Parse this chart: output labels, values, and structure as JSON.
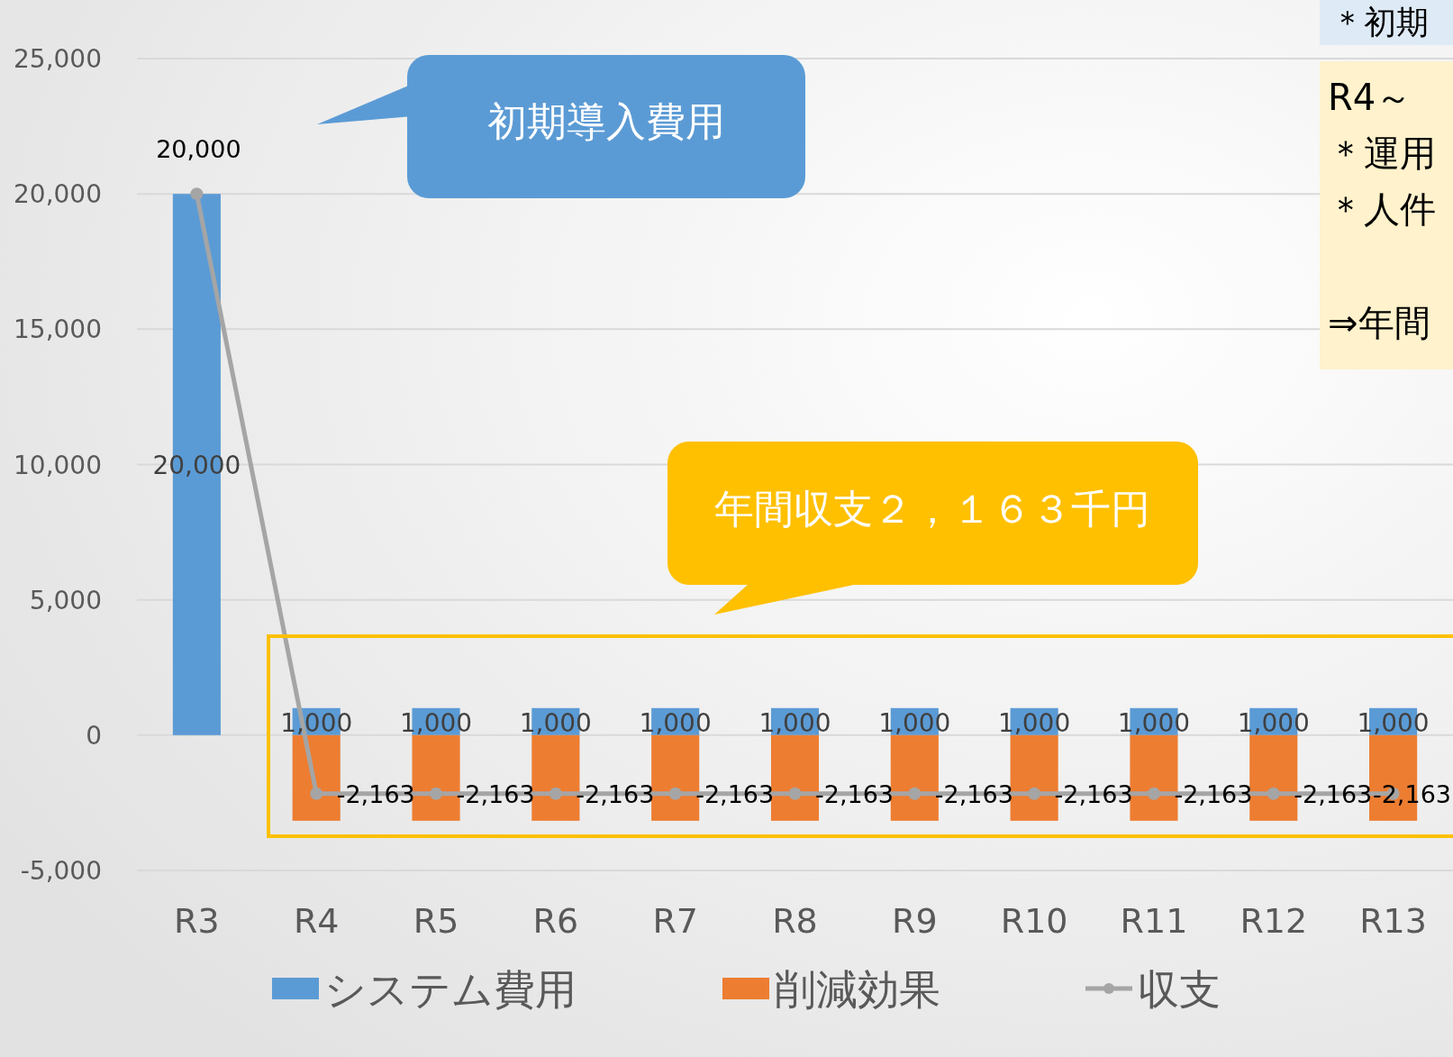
{
  "chart_data": {
    "type": "bar",
    "categories": [
      "R3",
      "R4",
      "R5",
      "R6",
      "R7",
      "R8",
      "R9",
      "R10",
      "R11",
      "R12",
      "R13"
    ],
    "series": [
      {
        "name": "システム費用",
        "color": "#5b9bd5",
        "values": [
          20000,
          1000,
          1000,
          1000,
          1000,
          1000,
          1000,
          1000,
          1000,
          1000,
          1000
        ],
        "value_labels": [
          "20,000",
          "1,000",
          "1,000",
          "1,000",
          "1,000",
          "1,000",
          "1,000",
          "1,000",
          "1,000",
          "1,000",
          "1,000"
        ]
      },
      {
        "name": "削減効果",
        "color": "#ed7d31",
        "values": [
          null,
          -3163,
          -3163,
          -3163,
          -3163,
          -3163,
          -3163,
          -3163,
          -3163,
          -3163,
          -3163
        ]
      },
      {
        "name": "収支",
        "type": "line",
        "color": "#a5a5a5",
        "marker": "circle",
        "values": [
          20000,
          -2163,
          -2163,
          -2163,
          -2163,
          -2163,
          -2163,
          -2163,
          -2163,
          -2163,
          -2163
        ],
        "value_labels": [
          "20,000",
          "-2,163",
          "-2,163",
          "-2,163",
          "-2,163",
          "-2,163",
          "-2,163",
          "-2,163",
          "-2,163",
          "-2,163",
          "-2,163"
        ]
      }
    ],
    "ylim": [
      -5000,
      25000
    ],
    "yticks": [
      {
        "value": -5000,
        "label": "-5,000"
      },
      0,
      {
        "value": 5000,
        "label": "5,000"
      },
      {
        "value": 10000,
        "label": "10,000"
      },
      {
        "value": 15000,
        "label": "15,000"
      },
      {
        "value": 20000,
        "label": "20,000"
      },
      {
        "value": 25000,
        "label": "25,000"
      }
    ],
    "stacked": true,
    "grid": "y",
    "legend": "bottom",
    "annotations": [
      "初期導入費用",
      "年間収支２，１６３千円",
      "＊初期",
      "R4～",
      "＊運用",
      "＊人件",
      "⇒年間"
    ]
  }
}
